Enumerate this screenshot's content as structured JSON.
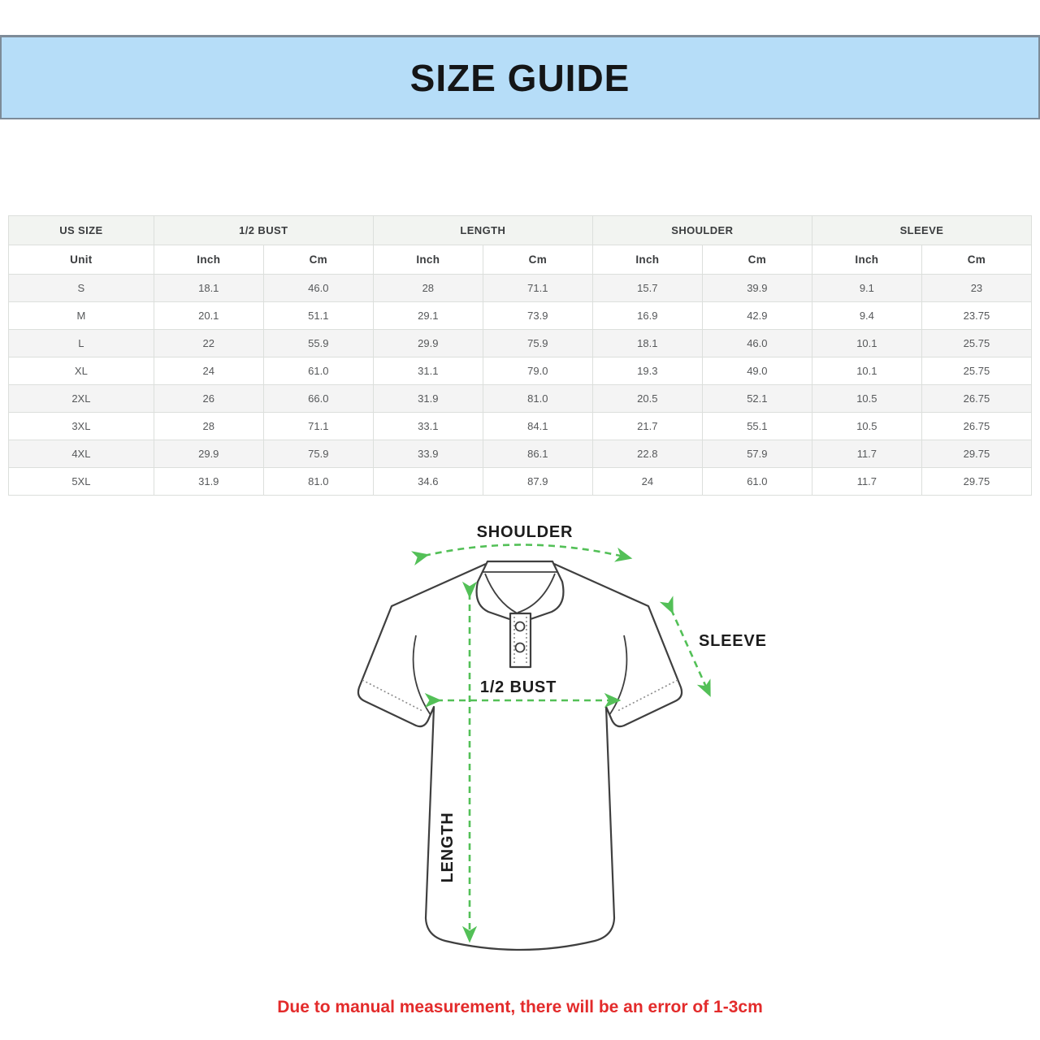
{
  "header": {
    "title": "SIZE GUIDE"
  },
  "table": {
    "groups": [
      {
        "label": "US SIZE",
        "span": 1
      },
      {
        "label": "1/2 BUST",
        "span": 2
      },
      {
        "label": "LENGTH",
        "span": 2
      },
      {
        "label": "SHOULDER",
        "span": 2
      },
      {
        "label": "SLEEVE",
        "span": 2
      }
    ],
    "unit_row": [
      "Unit",
      "Inch",
      "Cm",
      "Inch",
      "Cm",
      "Inch",
      "Cm",
      "Inch",
      "Cm"
    ],
    "rows": [
      [
        "S",
        "18.1",
        "46.0",
        "28",
        "71.1",
        "15.7",
        "39.9",
        "9.1",
        "23"
      ],
      [
        "M",
        "20.1",
        "51.1",
        "29.1",
        "73.9",
        "16.9",
        "42.9",
        "9.4",
        "23.75"
      ],
      [
        "L",
        "22",
        "55.9",
        "29.9",
        "75.9",
        "18.1",
        "46.0",
        "10.1",
        "25.75"
      ],
      [
        "XL",
        "24",
        "61.0",
        "31.1",
        "79.0",
        "19.3",
        "49.0",
        "10.1",
        "25.75"
      ],
      [
        "2XL",
        "26",
        "66.0",
        "31.9",
        "81.0",
        "20.5",
        "52.1",
        "10.5",
        "26.75"
      ],
      [
        "3XL",
        "28",
        "71.1",
        "33.1",
        "84.1",
        "21.7",
        "55.1",
        "10.5",
        "26.75"
      ],
      [
        "4XL",
        "29.9",
        "75.9",
        "33.9",
        "86.1",
        "22.8",
        "57.9",
        "11.7",
        "29.75"
      ],
      [
        "5XL",
        "31.9",
        "81.0",
        "34.6",
        "87.9",
        "24",
        "61.0",
        "11.7",
        "29.75"
      ]
    ]
  },
  "diagram": {
    "labels": {
      "shoulder": "SHOULDER",
      "sleeve": "SLEEVE",
      "bust": "1/2 BUST",
      "length": "LENGTH"
    }
  },
  "footer": {
    "note": "Due to manual measurement, there will be an error of 1-3cm"
  },
  "colors": {
    "band_bg": "#b6ddf8",
    "band_border": "#7d8b98",
    "arrow_green": "#53c057",
    "note_red": "#e32b2b",
    "outline": "#3f3f3f",
    "table_border": "#dcdfdc",
    "header_bg": "#f2f4f1",
    "stripe_bg": "#f4f4f4"
  }
}
